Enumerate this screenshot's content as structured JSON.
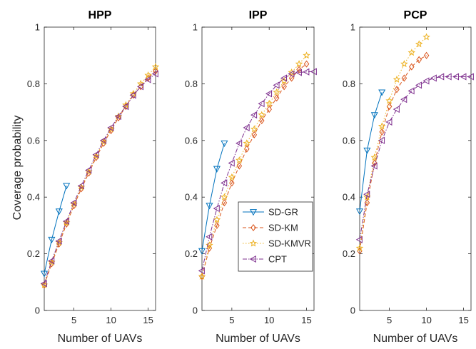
{
  "figure": {
    "ylabel": "Coverage probability"
  },
  "series_styles": [
    {
      "name": "SD-GR",
      "color": "#0072BD",
      "marker": "triangle-down",
      "dash": ""
    },
    {
      "name": "SD-KM",
      "color": "#D95319",
      "marker": "diamond",
      "dash": "5,3"
    },
    {
      "name": "SD-KMVR",
      "color": "#EDB120",
      "marker": "star",
      "dash": "1.5,2.5"
    },
    {
      "name": "CPT",
      "color": "#7E2F8E",
      "marker": "triangle-left",
      "dash": "6,2,1.5,2"
    }
  ],
  "legend": {
    "location": "inside lower-right of middle panel",
    "entries": [
      "SD-GR",
      "SD-KM",
      "SD-KMVR",
      "CPT"
    ]
  },
  "chart_data": [
    {
      "type": "line",
      "title": "HPP",
      "xlabel": "Number of UAVs",
      "ylabel": "Coverage probability",
      "xlim": [
        1,
        16
      ],
      "ylim": [
        0,
        1
      ],
      "xticks": [
        5,
        10,
        15
      ],
      "yticks": [
        0,
        0.2,
        0.4,
        0.6,
        0.8,
        1
      ],
      "grid": false,
      "series": [
        {
          "name": "SD-GR",
          "x": [
            1,
            2,
            3,
            4
          ],
          "y": [
            0.13,
            0.25,
            0.35,
            0.44
          ]
        },
        {
          "name": "SD-KM",
          "x": [
            1,
            2,
            3,
            4,
            5,
            6,
            7,
            8,
            9,
            10,
            11,
            12,
            13,
            14,
            15,
            16
          ],
          "y": [
            0.09,
            0.165,
            0.235,
            0.305,
            0.37,
            0.43,
            0.485,
            0.54,
            0.59,
            0.635,
            0.68,
            0.72,
            0.76,
            0.79,
            0.82,
            0.845
          ]
        },
        {
          "name": "SD-KMVR",
          "x": [
            1,
            2,
            3,
            4,
            5,
            6,
            7,
            8,
            9,
            10,
            11,
            12,
            13,
            14,
            15,
            16
          ],
          "y": [
            0.09,
            0.17,
            0.24,
            0.31,
            0.375,
            0.435,
            0.49,
            0.545,
            0.595,
            0.64,
            0.685,
            0.725,
            0.765,
            0.8,
            0.83,
            0.86
          ]
        },
        {
          "name": "CPT",
          "x": [
            1,
            2,
            3,
            4,
            5,
            6,
            7,
            8,
            9,
            10,
            11,
            12,
            13,
            14,
            15,
            16
          ],
          "y": [
            0.095,
            0.175,
            0.245,
            0.315,
            0.38,
            0.44,
            0.495,
            0.55,
            0.6,
            0.645,
            0.685,
            0.72,
            0.76,
            0.79,
            0.815,
            0.835
          ]
        }
      ]
    },
    {
      "type": "line",
      "title": "IPP",
      "xlabel": "Number of UAVs",
      "ylabel": "",
      "xlim": [
        1,
        16
      ],
      "ylim": [
        0,
        1
      ],
      "xticks": [
        5,
        10,
        15
      ],
      "yticks": [
        0,
        0.2,
        0.4,
        0.6,
        0.8,
        1
      ],
      "grid": false,
      "series": [
        {
          "name": "SD-GR",
          "x": [
            1,
            2,
            3,
            4
          ],
          "y": [
            0.21,
            0.37,
            0.5,
            0.59
          ]
        },
        {
          "name": "SD-KM",
          "x": [
            1,
            2,
            3,
            4,
            5,
            6,
            7,
            8,
            9,
            10,
            11,
            12,
            13,
            14,
            15
          ],
          "y": [
            0.12,
            0.22,
            0.3,
            0.38,
            0.45,
            0.51,
            0.57,
            0.62,
            0.67,
            0.71,
            0.75,
            0.79,
            0.82,
            0.85,
            0.87
          ]
        },
        {
          "name": "SD-KMVR",
          "x": [
            1,
            2,
            3,
            4,
            5,
            6,
            7,
            8,
            9,
            10,
            11,
            12,
            13,
            14,
            15
          ],
          "y": [
            0.12,
            0.23,
            0.32,
            0.4,
            0.47,
            0.53,
            0.59,
            0.64,
            0.69,
            0.73,
            0.77,
            0.81,
            0.84,
            0.87,
            0.9
          ]
        },
        {
          "name": "CPT",
          "x": [
            1,
            2,
            3,
            4,
            5,
            6,
            7,
            8,
            9,
            10,
            11,
            12,
            13,
            14,
            15,
            16
          ],
          "y": [
            0.14,
            0.26,
            0.36,
            0.45,
            0.52,
            0.59,
            0.645,
            0.69,
            0.73,
            0.765,
            0.795,
            0.82,
            0.835,
            0.84,
            0.842,
            0.843
          ]
        }
      ]
    },
    {
      "type": "line",
      "title": "PCP",
      "xlabel": "Number of UAVs",
      "ylabel": "",
      "xlim": [
        1,
        16
      ],
      "ylim": [
        0,
        1
      ],
      "xticks": [
        5,
        10,
        15
      ],
      "yticks": [
        0,
        0.2,
        0.4,
        0.6,
        0.8,
        1
      ],
      "grid": false,
      "series": [
        {
          "name": "SD-GR",
          "x": [
            1,
            2,
            3,
            4
          ],
          "y": [
            0.35,
            0.565,
            0.69,
            0.77
          ]
        },
        {
          "name": "SD-KM",
          "x": [
            1,
            2,
            3,
            4,
            5,
            6,
            7,
            8,
            9,
            10
          ],
          "y": [
            0.21,
            0.38,
            0.52,
            0.63,
            0.72,
            0.78,
            0.82,
            0.86,
            0.885,
            0.9
          ]
        },
        {
          "name": "SD-KMVR",
          "x": [
            1,
            2,
            3,
            4,
            5,
            6,
            7,
            8,
            9,
            10
          ],
          "y": [
            0.22,
            0.4,
            0.54,
            0.65,
            0.74,
            0.815,
            0.87,
            0.91,
            0.94,
            0.965
          ]
        },
        {
          "name": "CPT",
          "x": [
            1,
            2,
            3,
            4,
            5,
            6,
            7,
            8,
            9,
            10,
            11,
            12,
            13,
            14,
            15,
            16
          ],
          "y": [
            0.25,
            0.41,
            0.51,
            0.6,
            0.665,
            0.71,
            0.745,
            0.775,
            0.795,
            0.81,
            0.82,
            0.825,
            0.825,
            0.825,
            0.825,
            0.825
          ]
        }
      ]
    }
  ]
}
